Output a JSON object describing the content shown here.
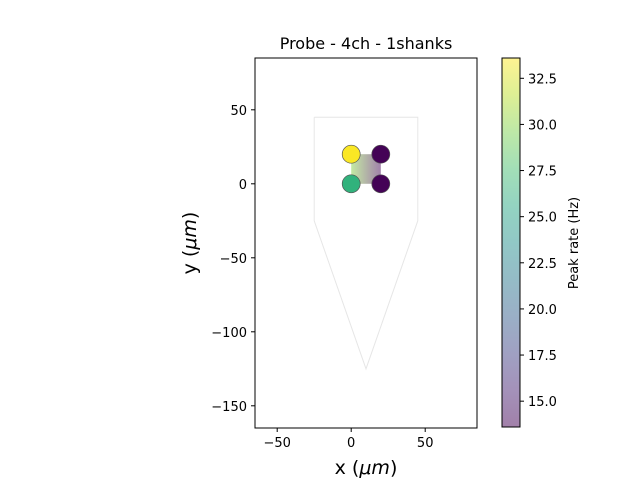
{
  "chart_data": {
    "type": "scatter",
    "title": "Probe - 4ch - 1shanks",
    "xlabel": "x (",
    "xlabel_unit": "μm",
    "xlabel_close": ")",
    "ylabel": "y (",
    "ylabel_unit": "μm",
    "ylabel_close": ")",
    "xlim": [
      -65,
      85
    ],
    "ylim": [
      -165,
      85
    ],
    "xticks": [
      -50,
      0,
      50
    ],
    "xtick_labels": [
      "−50",
      "0",
      "50"
    ],
    "yticks": [
      50,
      0,
      -50,
      -100,
      -150
    ],
    "ytick_labels": [
      "50",
      "0",
      "−50",
      "−100",
      "−150"
    ],
    "aspect": "equal",
    "grid": false,
    "probe_contour": [
      [
        -25,
        45
      ],
      [
        45,
        45
      ],
      [
        45,
        -25
      ],
      [
        10,
        -125
      ],
      [
        -25,
        -25
      ],
      [
        -25,
        45
      ]
    ],
    "channels": [
      {
        "x": 0,
        "y": 20,
        "value": 33.5
      },
      {
        "x": 20,
        "y": 20,
        "value": 13.7
      },
      {
        "x": 0,
        "y": 0,
        "value": 26.5
      },
      {
        "x": 20,
        "y": 0,
        "value": 13.7
      }
    ],
    "colorbar": {
      "label": "Peak rate (Hz)",
      "colormap": "viridis",
      "alpha": 0.5,
      "range": [
        13.6,
        33.6
      ],
      "ticks": [
        15.0,
        17.5,
        20.0,
        22.5,
        25.0,
        27.5,
        30.0,
        32.5
      ],
      "tick_labels": [
        "15.0",
        "17.5",
        "20.0",
        "22.5",
        "25.0",
        "27.5",
        "30.0",
        "32.5"
      ]
    }
  }
}
